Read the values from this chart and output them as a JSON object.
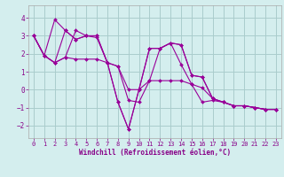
{
  "background_color": "#d4eeee",
  "grid_color": "#aacccc",
  "line_color": "#990099",
  "marker_color": "#990099",
  "xlabel": "Windchill (Refroidissement éolien,°C)",
  "xlim": [
    -0.5,
    23.5
  ],
  "ylim": [
    -2.7,
    4.7
  ],
  "xticks": [
    0,
    1,
    2,
    3,
    4,
    5,
    6,
    7,
    8,
    9,
    10,
    11,
    12,
    13,
    14,
    15,
    16,
    17,
    18,
    19,
    20,
    21,
    22,
    23
  ],
  "yticks": [
    -2,
    -1,
    0,
    1,
    2,
    3,
    4
  ],
  "series": [
    [
      0,
      1,
      2,
      3,
      4,
      5,
      6,
      7,
      8,
      9,
      10,
      11,
      12,
      13,
      14,
      15,
      16,
      17,
      18,
      19,
      20,
      21,
      22,
      23
    ],
    [
      3.0,
      1.9,
      3.9,
      3.3,
      2.8,
      3.0,
      3.0,
      1.5,
      -0.7,
      -2.2,
      0.0,
      2.3,
      2.3,
      2.6,
      2.5,
      0.8,
      0.7,
      -0.5,
      -0.7,
      -0.9,
      -0.9,
      -1.0,
      -1.1,
      -1.1
    ],
    [
      3.0,
      1.9,
      1.5,
      3.3,
      2.8,
      3.0,
      3.0,
      1.5,
      -0.7,
      -2.2,
      0.0,
      2.3,
      2.3,
      2.6,
      2.5,
      0.8,
      0.7,
      -0.5,
      -0.7,
      -0.9,
      -0.9,
      -1.0,
      -1.1,
      -1.1
    ],
    [
      3.0,
      1.9,
      1.5,
      1.8,
      1.7,
      1.7,
      1.7,
      1.5,
      1.3,
      0.0,
      0.0,
      0.5,
      0.5,
      0.5,
      0.5,
      0.3,
      -0.7,
      -0.6,
      -0.7,
      -0.9,
      -0.9,
      -1.0,
      -1.1,
      -1.1
    ],
    [
      3.0,
      1.9,
      1.5,
      1.8,
      3.3,
      3.0,
      2.9,
      1.5,
      1.3,
      -0.6,
      -0.7,
      0.5,
      2.3,
      2.6,
      1.4,
      0.3,
      0.1,
      -0.5,
      -0.7,
      -0.9,
      -0.9,
      -1.0,
      -1.1,
      -1.1
    ]
  ],
  "tick_color": "#880088",
  "label_color": "#880088",
  "tick_fontsize": 5.0,
  "xlabel_fontsize": 5.5
}
